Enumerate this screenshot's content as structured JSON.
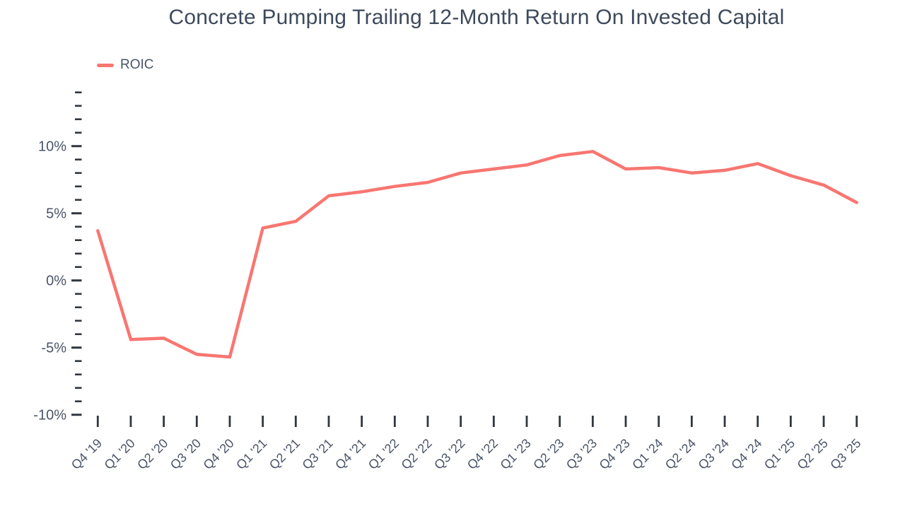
{
  "chart_data": {
    "type": "line",
    "title": "Concrete Pumping Trailing 12-Month Return On Invested Capital",
    "categories": [
      "Q4 '19",
      "Q1 '20",
      "Q2 '20",
      "Q3 '20",
      "Q4 '20",
      "Q1 '21",
      "Q2 '21",
      "Q3 '21",
      "Q4 '21",
      "Q1 '22",
      "Q2 '22",
      "Q3 '22",
      "Q4 '22",
      "Q1 '23",
      "Q2 '23",
      "Q3 '23",
      "Q4 '23",
      "Q1 '24",
      "Q2 '24",
      "Q3 '24",
      "Q4 '24",
      "Q1 '25",
      "Q2 '25",
      "Q3 '25"
    ],
    "series": [
      {
        "name": "ROIC",
        "color": "#F87671",
        "values": [
          3.7,
          -4.4,
          -4.3,
          -5.5,
          -5.7,
          3.9,
          4.4,
          6.3,
          6.6,
          7.0,
          7.3,
          8.0,
          8.3,
          8.6,
          9.3,
          9.6,
          8.3,
          8.4,
          8.0,
          8.2,
          8.7,
          7.8,
          7.1,
          5.8
        ]
      }
    ],
    "xlabel": "",
    "ylabel": "",
    "ylim": [
      -10,
      14
    ],
    "y_major_ticks": [
      -10,
      -5,
      0,
      5,
      10
    ],
    "y_major_tick_labels": [
      "-10%",
      "-5%",
      "0%",
      "5%",
      "10%"
    ],
    "y_minor_step": 1,
    "y_tick_format": "percent",
    "grid": false,
    "legend_position": "top-left",
    "colors": {
      "title": "#3D4A5C",
      "axis_label": "#4A5568",
      "tick": "#2F3740",
      "background": "#FFFFFF"
    }
  }
}
